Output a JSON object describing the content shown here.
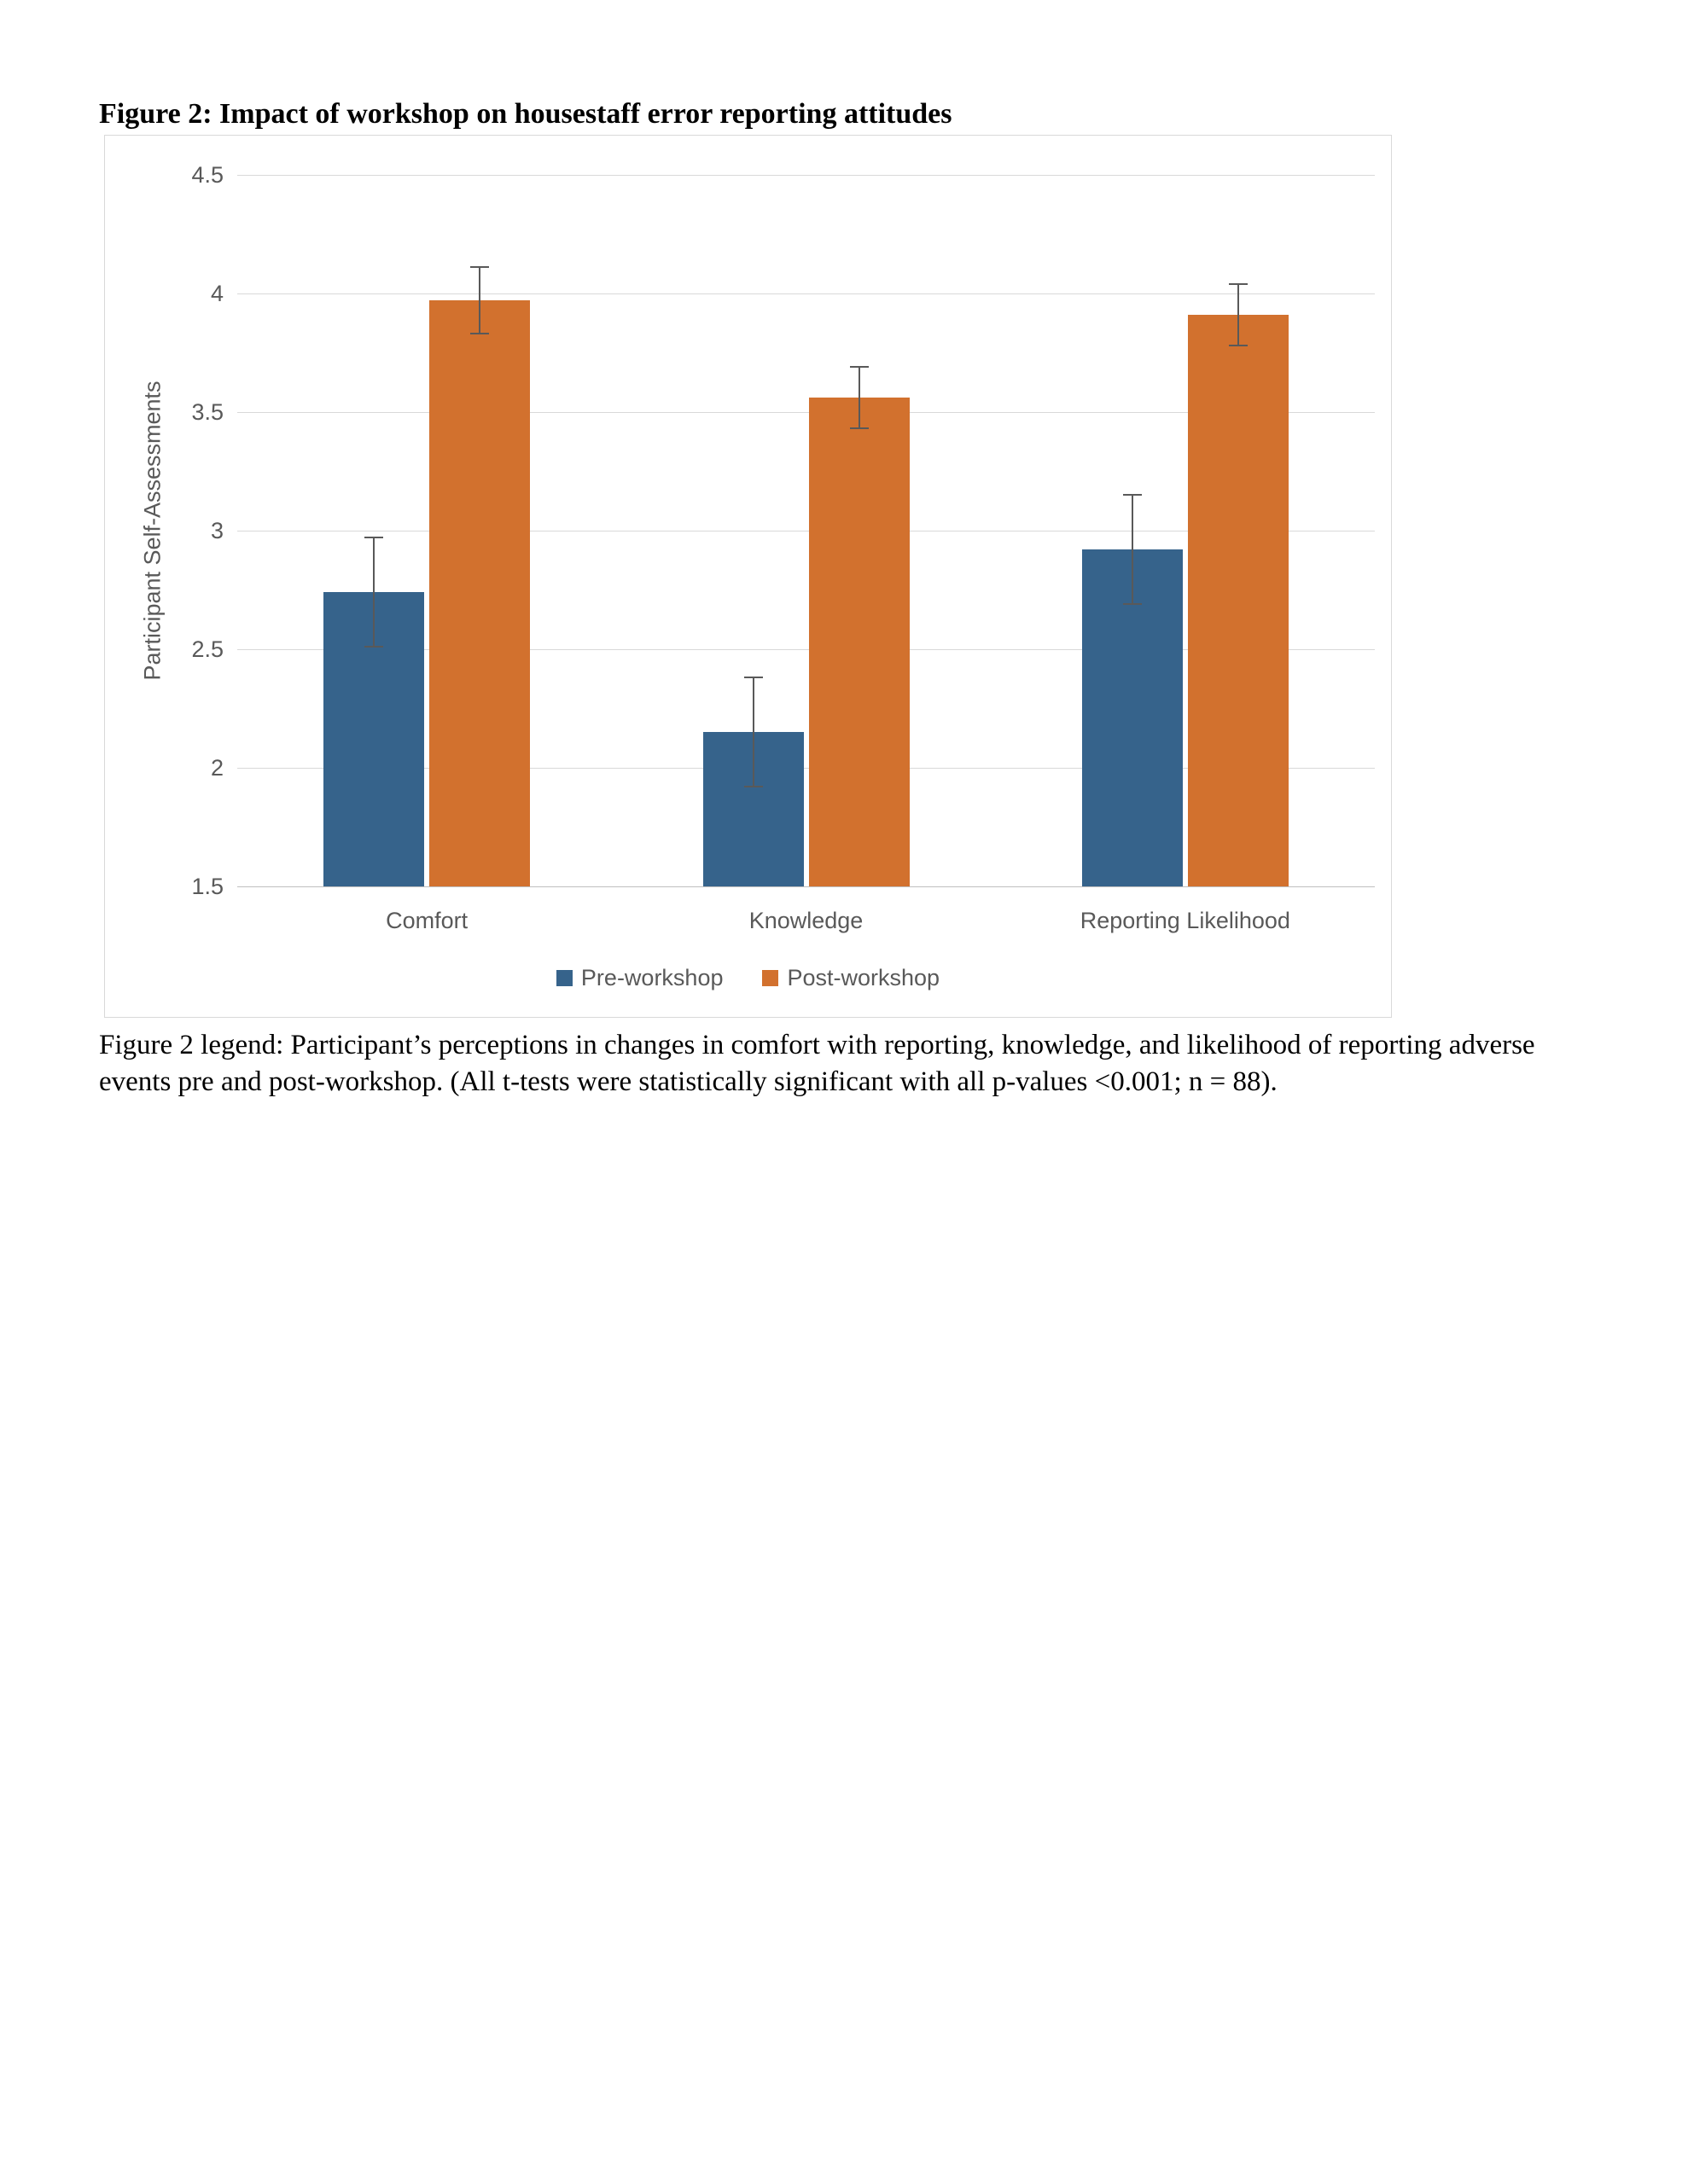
{
  "page": {
    "title": "Figure 2: Impact of workshop on housestaff error reporting attitudes",
    "caption": "Figure 2 legend: Participant’s perceptions in changes in comfort with reporting, knowledge, and likelihood of reporting adverse events pre and post-workshop. (All t-tests were statistically significant with all p-values <0.001; n = 88)."
  },
  "chart_data": {
    "type": "bar",
    "categories": [
      "Comfort",
      "Knowledge",
      "Reporting Likelihood"
    ],
    "series": [
      {
        "name": "Pre-workshop",
        "color": "#36638b",
        "values": [
          2.74,
          2.15,
          2.92
        ],
        "errors": [
          0.23,
          0.23,
          0.23
        ]
      },
      {
        "name": "Post-workshop",
        "color": "#d2712e",
        "values": [
          3.97,
          3.56,
          3.91
        ],
        "errors": [
          0.14,
          0.13,
          0.13
        ]
      }
    ],
    "title": "",
    "xlabel": "",
    "ylabel": "Participant Self-Assessments",
    "ylim": [
      1.5,
      4.5
    ],
    "ytick_step": 0.5,
    "yticks": [
      "1.5",
      "2",
      "2.5",
      "3",
      "3.5",
      "4",
      "4.5"
    ],
    "grid": true,
    "legend_position": "bottom",
    "error_bar_color": "#595959",
    "gridline_color": "#d9d9d9",
    "axis_label_color": "#595959"
  }
}
